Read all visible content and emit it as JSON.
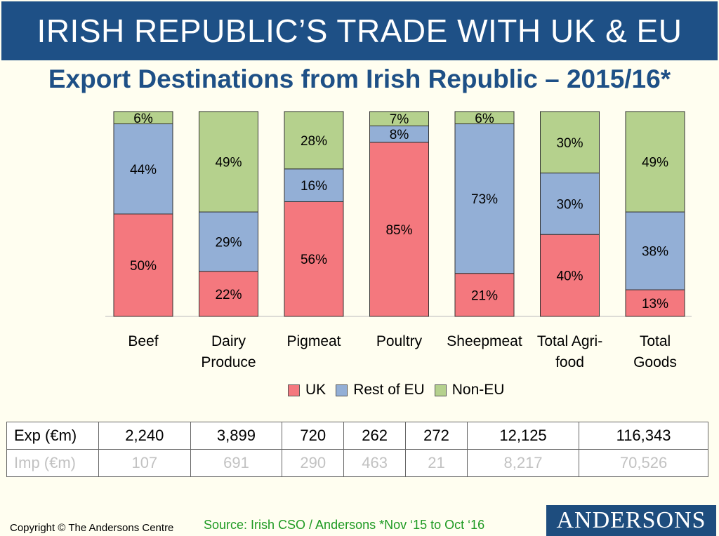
{
  "header": {
    "title": "IRISH REPUBLIC’S TRADE WITH UK & EU",
    "subtitle": "Export Destinations from Irish Republic – 2015/16*"
  },
  "chart_data": {
    "type": "bar",
    "stacked": true,
    "percent_scale": true,
    "categories": [
      "Beef",
      "Dairy Produce",
      "Pigmeat",
      "Poultry",
      "Sheepmeat",
      "Total Agri-food",
      "Total Goods"
    ],
    "category_lines": [
      [
        "Beef"
      ],
      [
        "Dairy",
        "Produce"
      ],
      [
        "Pigmeat"
      ],
      [
        "Poultry"
      ],
      [
        "Sheepmeat"
      ],
      [
        "Total Agri-",
        "food"
      ],
      [
        "Total",
        "Goods"
      ]
    ],
    "series": [
      {
        "name": "UK",
        "color": "#f4787e",
        "values": [
          50,
          22,
          56,
          85,
          21,
          40,
          13
        ]
      },
      {
        "name": "Rest of EU",
        "color": "#93afd6",
        "values": [
          44,
          29,
          16,
          8,
          73,
          30,
          38
        ]
      },
      {
        "name": "Non-EU",
        "color": "#b5d18d",
        "values": [
          6,
          49,
          28,
          7,
          6,
          30,
          49
        ]
      }
    ],
    "data_label_suffix": "%",
    "legend_position": "bottom",
    "grid": false
  },
  "legend": [
    {
      "label": "UK",
      "color": "#f4787e"
    },
    {
      "label": "Rest of EU",
      "color": "#93afd6"
    },
    {
      "label": "Non-EU",
      "color": "#b5d18d"
    }
  ],
  "table": {
    "rows": [
      {
        "label": "Exp (€m)",
        "values": [
          "2,240",
          "3,899",
          "720",
          "262",
          "272",
          "12,125",
          "116,343"
        ]
      },
      {
        "label": "Imp (€m)",
        "values": [
          "107",
          "691",
          "290",
          "463",
          "21",
          "8,217",
          "70,526"
        ]
      }
    ]
  },
  "footer": {
    "copyright": "Copyright © The Andersons Centre",
    "source": "Source:  Irish CSO / Andersons *Nov ‘15 to Oct ‘16",
    "logo": "ANDERSONS"
  }
}
